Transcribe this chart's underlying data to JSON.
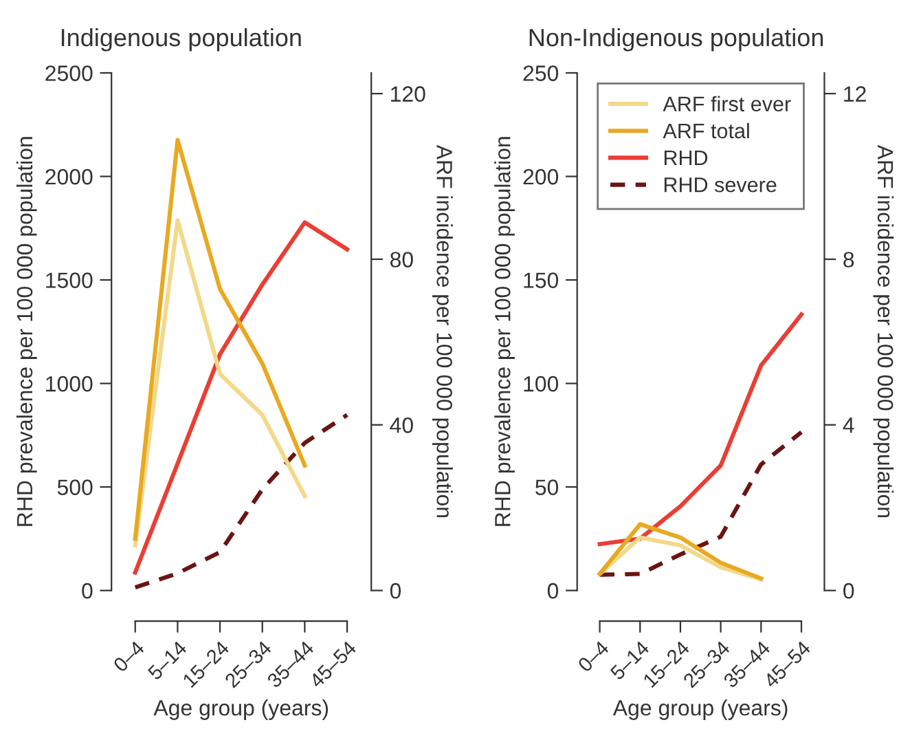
{
  "chart_data": [
    {
      "type": "line",
      "title": "Indigenous population",
      "xlabel": "Age group (years)",
      "ylabel": "RHD prevalence per 100 000 population",
      "y2label": "ARF incidence per 100 000 population",
      "categories": [
        "0–4",
        "5–14",
        "15–24",
        "25–34",
        "35–44",
        "45–54"
      ],
      "ylim": [
        0,
        2500
      ],
      "yticks": [
        0,
        500,
        1000,
        1500,
        2000,
        2500
      ],
      "y2lim": [
        0,
        125
      ],
      "y2ticks": [
        0,
        40,
        80,
        120
      ],
      "grid": false,
      "legend": false,
      "line_style": "solid",
      "marker": "none",
      "series": [
        {
          "color": "#f2d98a",
          "axis": "y2",
          "values": [
            10.9,
            89.4,
            52.3,
            42.4,
            22.8,
            null
          ]
        },
        {
          "color": "#e8a921",
          "axis": "y2",
          "values": [
            12.5,
            108.8,
            72.8,
            54.8,
            30.2,
            null
          ]
        },
        {
          "color": "#ea3e35",
          "values": [
            87,
            613,
            1141,
            1478,
            1778,
            1648
          ]
        },
        {
          "color": "#6b1414",
          "line_style": "dashed",
          "values": [
            15,
            83,
            185,
            489,
            713,
            848
          ]
        }
      ]
    },
    {
      "type": "line",
      "title": "Non-Indigenous population",
      "xlabel": "Age group (years)",
      "ylabel": "RHD prevalence per 100 000 population",
      "y2label": "ARF incidence per 100 000 population",
      "categories": [
        "0–4",
        "5–14",
        "15–24",
        "25–34",
        "35–44",
        "45–54"
      ],
      "ylim": [
        0,
        250
      ],
      "yticks": [
        0,
        50,
        100,
        150,
        200,
        250
      ],
      "y2lim": [
        0,
        12.5
      ],
      "y2ticks": [
        0,
        4,
        8,
        12
      ],
      "grid": false,
      "legend": "top",
      "line_style": "solid",
      "marker": "none",
      "series": [
        {
          "name": "ARF first ever",
          "color": "#f2d98a",
          "axis": "y2",
          "values": [
            0.4,
            1.28,
            1.09,
            0.56,
            0.27,
            null
          ]
        },
        {
          "name": "ARF total",
          "color": "#e8a921",
          "axis": "y2",
          "values": [
            0.4,
            1.6,
            1.28,
            0.67,
            0.29,
            null
          ]
        },
        {
          "name": "RHD",
          "color": "#ea3e35",
          "values": [
            22.4,
            25,
            40.7,
            60.4,
            108.7,
            133.3
          ]
        },
        {
          "name": "RHD severe",
          "color": "#6b1414",
          "line_style": "dashed",
          "values": [
            7.6,
            8,
            17.4,
            26,
            60.9,
            76.5
          ]
        }
      ]
    }
  ]
}
